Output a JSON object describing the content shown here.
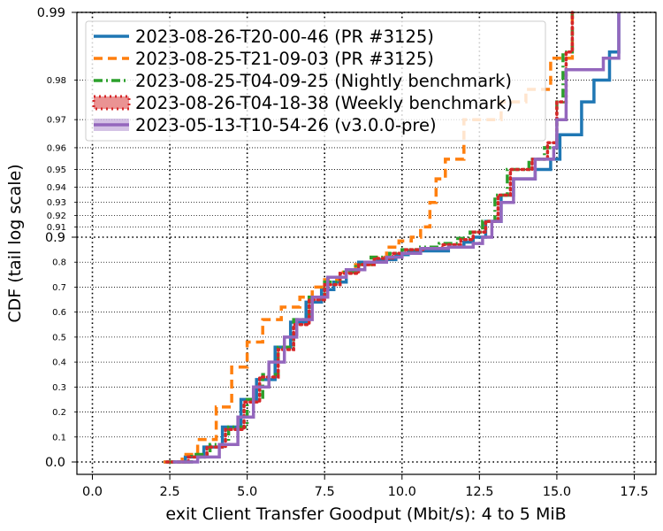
{
  "chart_data": {
    "type": "line",
    "title": "",
    "xlabel": "exit Client Transfer Goodput (Mbit/s): 4 to 5 MiB",
    "ylabel": "CDF (tail log scale)",
    "xlim": [
      -0.5,
      18.2
    ],
    "x_ticks": [
      {
        "value": 0,
        "label": "0.0"
      },
      {
        "value": 2.5,
        "label": "2.5"
      },
      {
        "value": 5,
        "label": "5.0"
      },
      {
        "value": 7.5,
        "label": "7.5"
      },
      {
        "value": 10,
        "label": "10.0"
      },
      {
        "value": 12.5,
        "label": "12.5"
      },
      {
        "value": 15,
        "label": "15.0"
      },
      {
        "value": 17.5,
        "label": "17.5"
      }
    ],
    "y_scale": "tail log (linear below 0.9, log of 1-p above 0.9)",
    "y_ticks_major": [
      {
        "value": 0.0,
        "label": "0.0"
      },
      {
        "value": 0.9,
        "label": "0.9"
      },
      {
        "value": 0.99,
        "label": "0.99"
      }
    ],
    "y_ticks_minor": [
      {
        "value": 0.1,
        "label": "0.1"
      },
      {
        "value": 0.2,
        "label": "0.2"
      },
      {
        "value": 0.3,
        "label": "0.3"
      },
      {
        "value": 0.4,
        "label": "0.4"
      },
      {
        "value": 0.5,
        "label": "0.5"
      },
      {
        "value": 0.6,
        "label": "0.6"
      },
      {
        "value": 0.7,
        "label": "0.7"
      },
      {
        "value": 0.8,
        "label": "0.8"
      },
      {
        "value": 0.91,
        "label": "0.91"
      },
      {
        "value": 0.92,
        "label": "0.92"
      },
      {
        "value": 0.93,
        "label": "0.93"
      },
      {
        "value": 0.94,
        "label": "0.94"
      },
      {
        "value": 0.95,
        "label": "0.95"
      },
      {
        "value": 0.96,
        "label": "0.96"
      },
      {
        "value": 0.97,
        "label": "0.97"
      },
      {
        "value": 0.98,
        "label": "0.98"
      }
    ],
    "grid": true,
    "legend_position": "top-left",
    "series": [
      {
        "name": "2023-08-26-T20-00-46 (PR #3125)",
        "color": "#1f77b4",
        "style": "solid",
        "points": [
          [
            2.3,
            0.0
          ],
          [
            3.0,
            0.02
          ],
          [
            3.6,
            0.06
          ],
          [
            4.2,
            0.14
          ],
          [
            4.8,
            0.25
          ],
          [
            5.3,
            0.33
          ],
          [
            5.9,
            0.46
          ],
          [
            6.4,
            0.56
          ],
          [
            6.9,
            0.64
          ],
          [
            7.4,
            0.69
          ],
          [
            7.8,
            0.72
          ],
          [
            8.2,
            0.77
          ],
          [
            8.6,
            0.8
          ],
          [
            9.2,
            0.81
          ],
          [
            9.8,
            0.83
          ],
          [
            10.2,
            0.845
          ],
          [
            11.5,
            0.86
          ],
          [
            12.0,
            0.88
          ],
          [
            12.3,
            0.9
          ],
          [
            12.7,
            0.915
          ],
          [
            13.2,
            0.935
          ],
          [
            13.6,
            0.945
          ],
          [
            14.3,
            0.95
          ],
          [
            14.8,
            0.955
          ],
          [
            15.1,
            0.965
          ],
          [
            15.8,
            0.975
          ],
          [
            16.2,
            0.98
          ],
          [
            16.7,
            0.985
          ],
          [
            17.0,
            0.99
          ]
        ]
      },
      {
        "name": "2023-08-25-T21-09-03 (PR #3125)",
        "color": "#ff7f0e",
        "style": "dashed",
        "points": [
          [
            2.3,
            0.0
          ],
          [
            2.9,
            0.03
          ],
          [
            3.4,
            0.09
          ],
          [
            4.0,
            0.22
          ],
          [
            4.5,
            0.38
          ],
          [
            5.0,
            0.48
          ],
          [
            5.5,
            0.57
          ],
          [
            6.1,
            0.62
          ],
          [
            6.7,
            0.66
          ],
          [
            7.1,
            0.7
          ],
          [
            7.5,
            0.73
          ],
          [
            8.0,
            0.76
          ],
          [
            8.5,
            0.79
          ],
          [
            9.0,
            0.82
          ],
          [
            9.5,
            0.86
          ],
          [
            9.9,
            0.885
          ],
          [
            10.3,
            0.9
          ],
          [
            10.6,
            0.91
          ],
          [
            10.9,
            0.93
          ],
          [
            11.1,
            0.945
          ],
          [
            11.4,
            0.955
          ],
          [
            12.0,
            0.97
          ],
          [
            13.2,
            0.975
          ],
          [
            14.0,
            0.978
          ],
          [
            14.8,
            0.984
          ],
          [
            15.5,
            0.99
          ]
        ]
      },
      {
        "name": "2023-08-25-T04-09-25 (Nightly benchmark)",
        "color": "#2ca02c",
        "style": "dashdot",
        "points": [
          [
            2.4,
            0.0
          ],
          [
            3.2,
            0.03
          ],
          [
            3.8,
            0.07
          ],
          [
            4.4,
            0.14
          ],
          [
            5.0,
            0.25
          ],
          [
            5.5,
            0.35
          ],
          [
            6.0,
            0.46
          ],
          [
            6.5,
            0.57
          ],
          [
            7.0,
            0.66
          ],
          [
            7.5,
            0.72
          ],
          [
            8.0,
            0.76
          ],
          [
            8.5,
            0.79
          ],
          [
            9.0,
            0.82
          ],
          [
            9.6,
            0.835
          ],
          [
            10.0,
            0.85
          ],
          [
            10.6,
            0.86
          ],
          [
            11.2,
            0.875
          ],
          [
            11.8,
            0.895
          ],
          [
            12.2,
            0.905
          ],
          [
            12.6,
            0.915
          ],
          [
            13.0,
            0.935
          ],
          [
            13.4,
            0.95
          ],
          [
            14.1,
            0.955
          ],
          [
            14.6,
            0.96
          ],
          [
            15.0,
            0.975
          ],
          [
            15.2,
            0.985
          ],
          [
            15.5,
            0.99
          ]
        ]
      },
      {
        "name": "2023-08-26-T04-18-38 (Weekly benchmark)",
        "color": "#d62728",
        "style": "dotted",
        "points": [
          [
            2.4,
            0.0
          ],
          [
            3.1,
            0.02
          ],
          [
            3.7,
            0.06
          ],
          [
            4.3,
            0.13
          ],
          [
            4.9,
            0.24
          ],
          [
            5.4,
            0.34
          ],
          [
            6.0,
            0.45
          ],
          [
            6.5,
            0.55
          ],
          [
            7.0,
            0.65
          ],
          [
            7.5,
            0.71
          ],
          [
            8.0,
            0.755
          ],
          [
            8.6,
            0.79
          ],
          [
            9.1,
            0.815
          ],
          [
            9.7,
            0.835
          ],
          [
            10.1,
            0.85
          ],
          [
            10.7,
            0.855
          ],
          [
            11.3,
            0.87
          ],
          [
            11.9,
            0.89
          ],
          [
            12.3,
            0.905
          ],
          [
            12.7,
            0.915
          ],
          [
            13.1,
            0.935
          ],
          [
            13.5,
            0.95
          ],
          [
            14.2,
            0.955
          ],
          [
            14.7,
            0.962
          ],
          [
            15.0,
            0.975
          ],
          [
            15.3,
            0.985
          ],
          [
            15.5,
            0.99
          ]
        ]
      },
      {
        "name": "2023-05-13-T10-54-26 (v3.0.0-pre)",
        "color": "#9467bd",
        "style": "solid",
        "points": [
          [
            2.6,
            0.0
          ],
          [
            3.4,
            0.02
          ],
          [
            4.1,
            0.07
          ],
          [
            4.7,
            0.18
          ],
          [
            5.2,
            0.3
          ],
          [
            5.7,
            0.4
          ],
          [
            6.2,
            0.5
          ],
          [
            6.6,
            0.57
          ],
          [
            7.1,
            0.66
          ],
          [
            7.6,
            0.74
          ],
          [
            8.2,
            0.77
          ],
          [
            8.8,
            0.8
          ],
          [
            9.5,
            0.82
          ],
          [
            10.0,
            0.835
          ],
          [
            10.6,
            0.855
          ],
          [
            11.5,
            0.86
          ],
          [
            12.3,
            0.875
          ],
          [
            12.6,
            0.9
          ],
          [
            12.9,
            0.915
          ],
          [
            13.2,
            0.93
          ],
          [
            13.6,
            0.945
          ],
          [
            14.3,
            0.955
          ],
          [
            14.9,
            0.96
          ],
          [
            15.0,
            0.97
          ],
          [
            15.3,
            0.982
          ],
          [
            16.5,
            0.984
          ],
          [
            17.0,
            0.99
          ]
        ]
      }
    ]
  }
}
